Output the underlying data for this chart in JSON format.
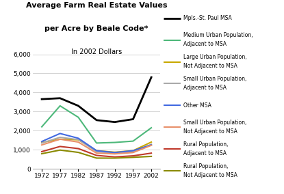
{
  "years": [
    1972,
    1977,
    1982,
    1987,
    1992,
    1997,
    2002
  ],
  "series": [
    {
      "label": [
        "Mpls.-St. Paul MSA"
      ],
      "color": "#000000",
      "linewidth": 2.0,
      "values": [
        3650,
        3700,
        3300,
        2550,
        2450,
        2600,
        4800
      ]
    },
    {
      "label": [
        "Medium Urban Population,",
        "Adjacent to MSA"
      ],
      "color": "#4db87a",
      "linewidth": 1.5,
      "values": [
        2200,
        3300,
        2700,
        1350,
        1380,
        1450,
        2150
      ]
    },
    {
      "label": [
        "Large Urban Population,",
        "Not Adjacent to MSA"
      ],
      "color": "#c8a800",
      "linewidth": 1.5,
      "values": [
        1380,
        1550,
        1520,
        950,
        870,
        950,
        1400
      ]
    },
    {
      "label": [
        "Small Urban Population,",
        "Adjacent to MSA"
      ],
      "color": "#aaaaaa",
      "linewidth": 1.5,
      "values": [
        1350,
        1650,
        1530,
        900,
        820,
        900,
        1280
      ]
    },
    {
      "label": [
        "Other MSA"
      ],
      "color": "#4169e1",
      "linewidth": 1.5,
      "values": [
        1430,
        1850,
        1600,
        950,
        850,
        950,
        1250
      ]
    },
    {
      "label": [
        "Small Urban Population,",
        "Not Adjacent to MSA"
      ],
      "color": "#e8906a",
      "linewidth": 1.5,
      "values": [
        1250,
        1550,
        1400,
        820,
        780,
        850,
        1230
      ]
    },
    {
      "label": [
        "Rural Population,",
        "Adjacent to MSA"
      ],
      "color": "#c0392b",
      "linewidth": 1.5,
      "values": [
        900,
        1170,
        1060,
        700,
        620,
        680,
        820
      ]
    },
    {
      "label": [
        "Rural Population,",
        "Not Adjacent to MSA"
      ],
      "color": "#8b8b00",
      "linewidth": 1.5,
      "values": [
        790,
        980,
        860,
        560,
        560,
        600,
        650
      ]
    }
  ],
  "title_line1": "Average Farm Real Estate Values",
  "title_line2": "per Acre by Beale Code*",
  "title_line3": "In 2002 Dollars",
  "ylim": [
    0,
    6000
  ],
  "yticks": [
    0,
    1000,
    2000,
    3000,
    4000,
    5000,
    6000
  ],
  "xlim": [
    1969.5,
    2004.5
  ],
  "background_color": "#ffffff",
  "grid_color": "#cccccc",
  "title1_fontsize": 8.0,
  "title2_fontsize": 8.0,
  "title3_fontsize": 7.0,
  "tick_fontsize": 6.5,
  "legend_fontsize": 5.5
}
